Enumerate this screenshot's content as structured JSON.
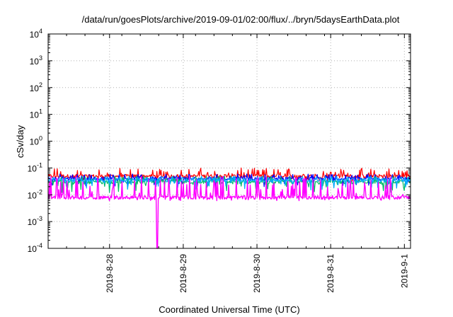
{
  "chart_data": {
    "type": "line",
    "title": "/data/run/goesPlots/archive/2019-09-01/02:00/flux/../bryn/5daysEarthData.plot",
    "xlabel": "Coordinated Universal Time (UTC)",
    "ylabel": "cSv/day",
    "yscale": "log",
    "ylim": [
      0.0001,
      10000
    ],
    "y_ticks": [
      {
        "base": "10",
        "exp": "-4",
        "value": 0.0001
      },
      {
        "base": "10",
        "exp": "-3",
        "value": 0.001
      },
      {
        "base": "10",
        "exp": "-2",
        "value": 0.01
      },
      {
        "base": "10",
        "exp": "-1",
        "value": 0.1
      },
      {
        "base": "10",
        "exp": "0",
        "value": 1
      },
      {
        "base": "10",
        "exp": "1",
        "value": 10
      },
      {
        "base": "10",
        "exp": "2",
        "value": 100
      },
      {
        "base": "10",
        "exp": "3",
        "value": 1000
      },
      {
        "base": "10",
        "exp": "4",
        "value": 10000
      }
    ],
    "xlim": [
      "2019-08-27 04:00",
      "2019-09-01 02:00"
    ],
    "x_ticks": [
      "2019-8-28",
      "2019-8-29",
      "2019-8-30",
      "2019-8-31",
      "2019-9-1"
    ],
    "grid": true,
    "legend": "none",
    "series": [
      {
        "color": "#ff0000",
        "level": 0.05,
        "spike_max": 0.1,
        "spike_min": 0.03
      },
      {
        "color": "#0000ff",
        "level": 0.04,
        "spike_max": 0.06,
        "spike_min": 0.02
      },
      {
        "color": "#00bb66",
        "level": 0.03,
        "spike_max": 0.05,
        "spike_min": 0.012
      },
      {
        "color": "#00aaff",
        "level": 0.035,
        "spike_max": 0.05,
        "spike_min": 0.015
      },
      {
        "color": "#ff00ff",
        "level": 0.008,
        "spike_max": 0.05,
        "spike_min": 0.006,
        "dip": {
          "x": "2019-08-28 15:30",
          "y": 0.0001
        }
      }
    ]
  }
}
